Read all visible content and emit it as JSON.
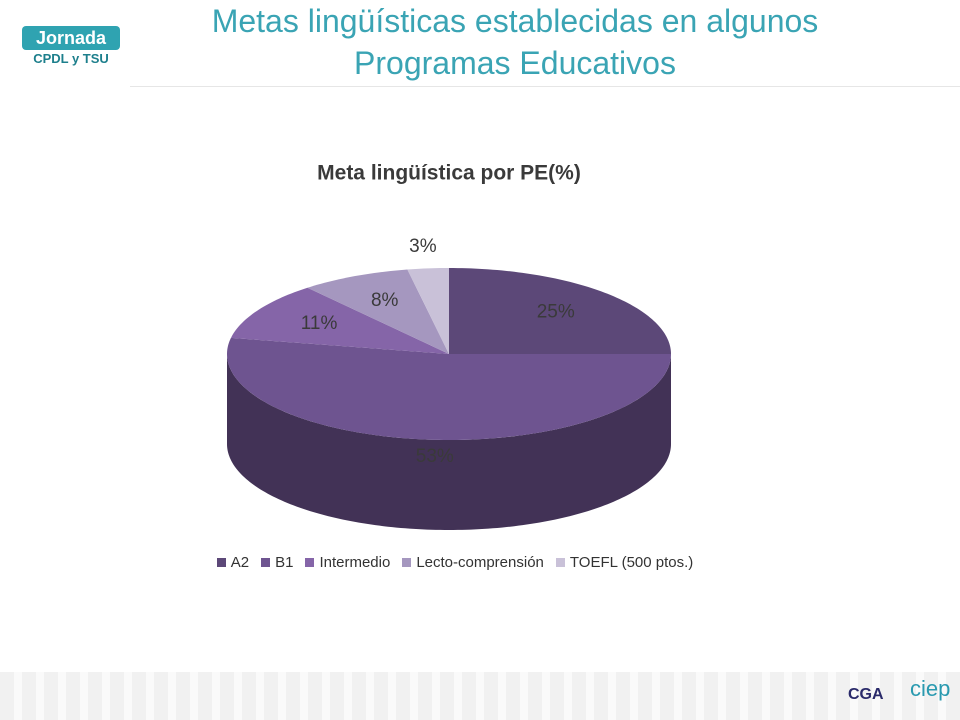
{
  "header": {
    "title": "Metas lingüísticas establecidas en algunos Programas Educativos",
    "logo_main": "Jornada",
    "logo_sub": "CPDL y TSU",
    "logo_right_1": "CGA",
    "logo_right_2": "ciep"
  },
  "chart_data": {
    "type": "pie",
    "title": "Meta lingüística por PE(%)",
    "categories": [
      "A2",
      "B1",
      "Intermedio",
      "Lecto-comprensión",
      "TOEFL (500 ptos.)"
    ],
    "values": [
      25,
      53,
      11,
      8,
      3
    ],
    "value_labels": [
      "25%",
      "53%",
      "11%",
      "8%",
      "3%"
    ],
    "colors": [
      "#5c4878",
      "#6e5490",
      "#8565a8",
      "#a597bf",
      "#c9c1d8"
    ],
    "legend": "bottom"
  }
}
